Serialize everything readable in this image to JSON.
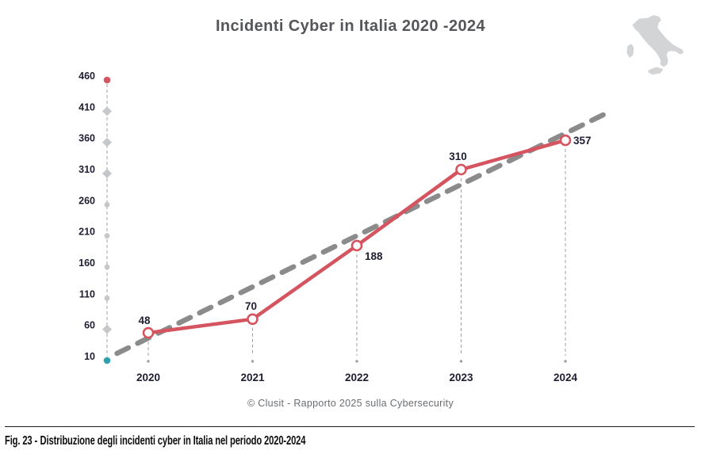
{
  "page": {
    "title": "Incidenti Cyber in Italia 2020 -2024",
    "source_caption": "© Clusit - Rapporto 2025 sulla Cybersecurity",
    "figure_label": "Fig. 23 -",
    "figure_caption": "Distribuzione degli incidenti cyber in Italia nel periodo 2020-2024"
  },
  "icons": {
    "italy_map": "italy-map-silhouette"
  },
  "colors": {
    "series_red": "#d4545f",
    "trend_gray": "#8b8b8b",
    "axis_gray": "#adb1b4",
    "dropline_gray": "#9aa0a3",
    "marker_gray": "#c5c7c9",
    "teal_dot": "#2f9fae",
    "label_dark": "#1e1e32",
    "title_gray": "#55565a",
    "caption_gray": "#6a6d70",
    "map_gray": "#d2d4d6"
  },
  "chart_data": {
    "type": "line",
    "title": "Incidenti Cyber in Italia 2020 -2024",
    "categories": [
      "2020",
      "2021",
      "2022",
      "2023",
      "2024"
    ],
    "series": [
      {
        "name": "incidenti-cyber",
        "style": "solid",
        "marker": "open-circle",
        "values": [
          48,
          70,
          188,
          310,
          357
        ]
      },
      {
        "name": "trend",
        "style": "dashed",
        "trend_points": [
          {
            "x": -0.3,
            "value": 15
          },
          {
            "x": 4.45,
            "value": 405
          }
        ]
      }
    ],
    "data_labels": [
      "48",
      "70",
      "188",
      "310",
      "357"
    ],
    "y_ticks": [
      10,
      60,
      110,
      160,
      210,
      260,
      310,
      360,
      410,
      460
    ],
    "y_axis_marker_shapes": [
      "teal-dot",
      "diamond",
      "circle",
      "circle",
      "circle",
      "circle",
      "diamond",
      "diamond",
      "diamond",
      "red-dot"
    ],
    "ylim": [
      10,
      460
    ],
    "xlabel": "",
    "ylabel": "",
    "grid": false,
    "legend": false
  }
}
